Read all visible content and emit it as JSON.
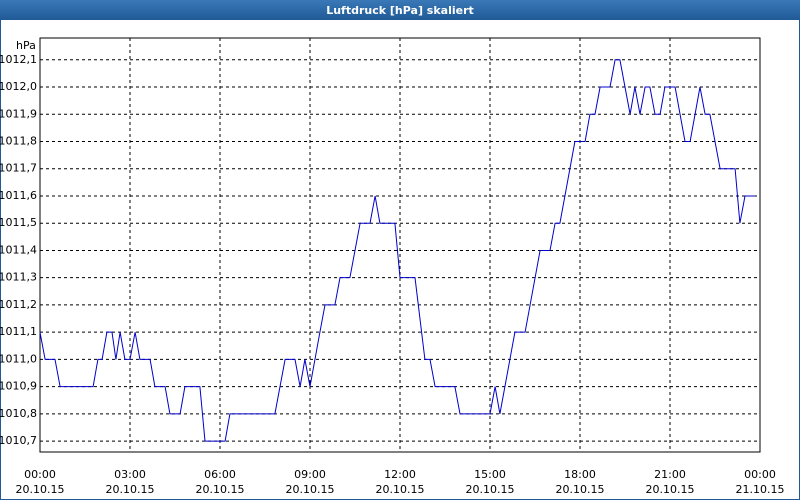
{
  "chart_data": {
    "type": "line",
    "title": "Luftdruck [hPa] skaliert",
    "y_label": "hPa",
    "x": [
      0,
      0.17,
      0.5,
      0.67,
      1.77,
      1.93,
      2.07,
      2.23,
      2.4,
      2.53,
      2.67,
      2.83,
      3,
      3.17,
      3.33,
      3.67,
      3.83,
      4.17,
      4.33,
      4.67,
      4.83,
      5.33,
      5.5,
      6.17,
      6.33,
      7.83,
      8.17,
      8.5,
      8.67,
      8.83,
      9,
      9.33,
      9.5,
      9.83,
      10,
      10.33,
      10.67,
      11,
      11.17,
      11.33,
      11.83,
      12,
      12.5,
      12.83,
      13,
      13.17,
      13.83,
      14,
      15,
      15.17,
      15.33,
      15.83,
      16.17,
      16.67,
      17,
      17.17,
      17.33,
      17.83,
      18.17,
      18.33,
      18.5,
      18.67,
      19,
      19.17,
      19.33,
      19.67,
      19.83,
      20,
      20.17,
      20.33,
      20.5,
      20.67,
      20.83,
      21.17,
      21.5,
      21.67,
      22,
      22.17,
      22.33,
      22.67,
      23.17,
      23.33,
      23.5,
      23.83
    ],
    "series": [
      {
        "name": "Luftdruck",
        "color": "#0000cc",
        "values": [
          1011.1,
          1011.0,
          1011.0,
          1010.9,
          1010.9,
          1011.0,
          1011.0,
          1011.1,
          1011.1,
          1011.0,
          1011.1,
          1011.0,
          1011.0,
          1011.1,
          1011.0,
          1011.0,
          1010.9,
          1010.9,
          1010.8,
          1010.8,
          1010.9,
          1010.9,
          1010.7,
          1010.7,
          1010.8,
          1010.8,
          1011.0,
          1011.0,
          1010.9,
          1011.0,
          1010.9,
          1011.1,
          1011.2,
          1011.2,
          1011.3,
          1011.3,
          1011.5,
          1011.5,
          1011.6,
          1011.5,
          1011.5,
          1011.3,
          1011.3,
          1011.0,
          1011.0,
          1010.9,
          1010.9,
          1010.8,
          1010.8,
          1010.9,
          1010.8,
          1011.1,
          1011.1,
          1011.4,
          1011.4,
          1011.5,
          1011.5,
          1011.8,
          1011.8,
          1011.9,
          1011.9,
          1012.0,
          1012.0,
          1012.1,
          1012.1,
          1011.9,
          1012.0,
          1011.9,
          1012.0,
          1012.0,
          1011.9,
          1011.9,
          1012.0,
          1012.0,
          1011.8,
          1011.8,
          1012.0,
          1011.9,
          1011.9,
          1011.7,
          1011.7,
          1011.5,
          1011.6,
          1011.6
        ]
      }
    ],
    "xlim": [
      0,
      24
    ],
    "xticks": [
      {
        "value": 0,
        "label": "00:00",
        "date": "20.10.15"
      },
      {
        "value": 3,
        "label": "03:00",
        "date": "20.10.15"
      },
      {
        "value": 6,
        "label": "06:00",
        "date": "20.10.15"
      },
      {
        "value": 9,
        "label": "09:00",
        "date": "20.10.15"
      },
      {
        "value": 12,
        "label": "12:00",
        "date": "20.10.15"
      },
      {
        "value": 15,
        "label": "15:00",
        "date": "20.10.15"
      },
      {
        "value": 18,
        "label": "18:00",
        "date": "20.10.15"
      },
      {
        "value": 21,
        "label": "21:00",
        "date": "20.10.15"
      },
      {
        "value": 24,
        "label": "00:00",
        "date": "21.10.15"
      }
    ],
    "ylim": [
      1010.66,
      1012.18
    ],
    "yticks": [
      {
        "value": 1010.7,
        "label": "1010,7"
      },
      {
        "value": 1010.8,
        "label": "1010,8"
      },
      {
        "value": 1010.9,
        "label": "1010,9"
      },
      {
        "value": 1011.0,
        "label": "1011,0"
      },
      {
        "value": 1011.1,
        "label": "1011,1"
      },
      {
        "value": 1011.2,
        "label": "1011,2"
      },
      {
        "value": 1011.3,
        "label": "1011,3"
      },
      {
        "value": 1011.4,
        "label": "1011,4"
      },
      {
        "value": 1011.5,
        "label": "1011,5"
      },
      {
        "value": 1011.6,
        "label": "1011,6"
      },
      {
        "value": 1011.7,
        "label": "1011,7"
      },
      {
        "value": 1011.8,
        "label": "1011,8"
      },
      {
        "value": 1011.9,
        "label": "1011,9"
      },
      {
        "value": 1012.0,
        "label": "1012,0"
      },
      {
        "value": 1012.1,
        "label": "1012,1"
      }
    ],
    "grid": true
  }
}
